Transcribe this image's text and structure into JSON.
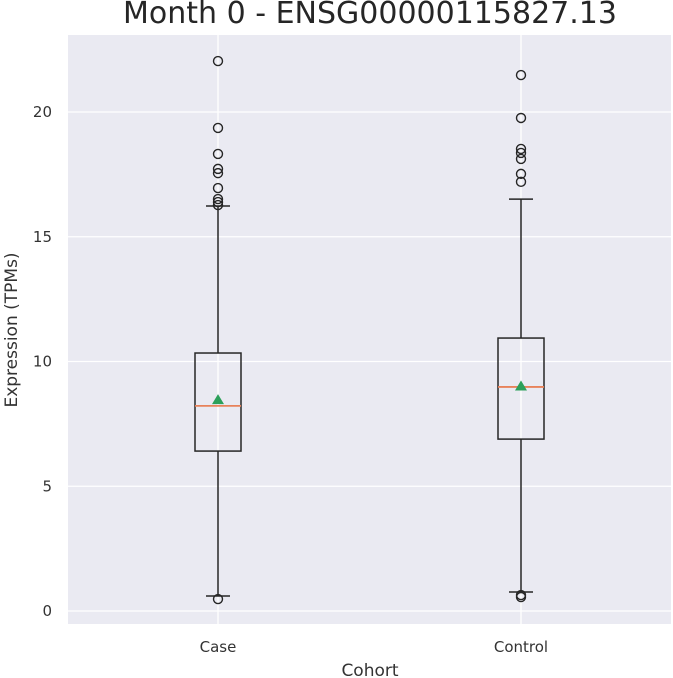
{
  "chart_data": {
    "type": "box",
    "title": "Month 0 - ENSG00000115827.13",
    "xlabel": "Cohort",
    "ylabel": "Expression (TPMs)",
    "categories": [
      "Case",
      "Control"
    ],
    "ylim": [
      -0.5,
      23.0
    ],
    "yticks": [
      0,
      5,
      10,
      15,
      20
    ],
    "grid": true,
    "background": "#eaeaf2",
    "series": [
      {
        "name": "Case",
        "whisker_low": 0.6,
        "q1": 6.41,
        "median": 8.22,
        "mean": 8.45,
        "q3": 10.34,
        "whisker_high": 16.23,
        "outliers": [
          22.04,
          19.36,
          18.32,
          17.72,
          17.55,
          16.95,
          16.51,
          16.39,
          16.27,
          0.48
        ]
      },
      {
        "name": "Control",
        "whisker_low": 0.76,
        "q1": 6.89,
        "median": 8.98,
        "mean": 9.0,
        "q3": 10.94,
        "whisker_high": 16.51,
        "outliers": [
          21.48,
          19.76,
          18.52,
          18.36,
          18.12,
          17.52,
          17.2,
          0.64,
          0.56
        ]
      }
    ],
    "colors": {
      "median": "#e8825a",
      "mean_marker": "#2ca05a",
      "box": "#262626",
      "grid": "#ffffff"
    }
  }
}
